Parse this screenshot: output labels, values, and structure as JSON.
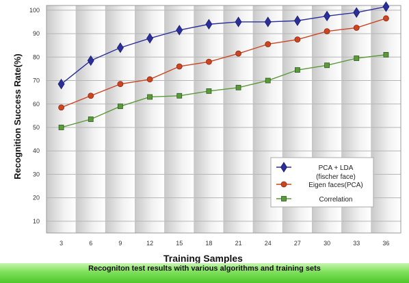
{
  "chart_data": {
    "type": "line",
    "xlabel": "Training Samples",
    "ylabel": "Recognition Success Rate(%)",
    "ylim": [
      5,
      102
    ],
    "yticks": [
      10,
      20,
      30,
      40,
      50,
      60,
      70,
      80,
      90,
      100
    ],
    "categories": [
      "3",
      "6",
      "9",
      "12",
      "15",
      "18",
      "21",
      "24",
      "27",
      "30",
      "33",
      "36"
    ],
    "grid": true,
    "legend_position": "bottom-right",
    "series": [
      {
        "name": "PCA + LDA\n(fischer face)",
        "marker": "diamond",
        "color": "#2b2f9a",
        "values": [
          68.5,
          78.5,
          84,
          88,
          91.5,
          94,
          95,
          95,
          95.5,
          97.5,
          99,
          101.5
        ]
      },
      {
        "name": "Eigen faces(PCA)",
        "marker": "circle",
        "color": "#cc4422",
        "values": [
          58.5,
          63.5,
          68.5,
          70.5,
          76,
          78,
          81.5,
          85.5,
          87.5,
          91,
          92.5,
          96.5
        ]
      },
      {
        "name": "Correlation",
        "marker": "square",
        "color": "#5a9a3a",
        "values": [
          50,
          53.5,
          59,
          63,
          63.5,
          65.5,
          67,
          70,
          74.5,
          76.5,
          79.5,
          81
        ]
      }
    ]
  },
  "caption": "Recogniton test results with various algorithms and training sets"
}
